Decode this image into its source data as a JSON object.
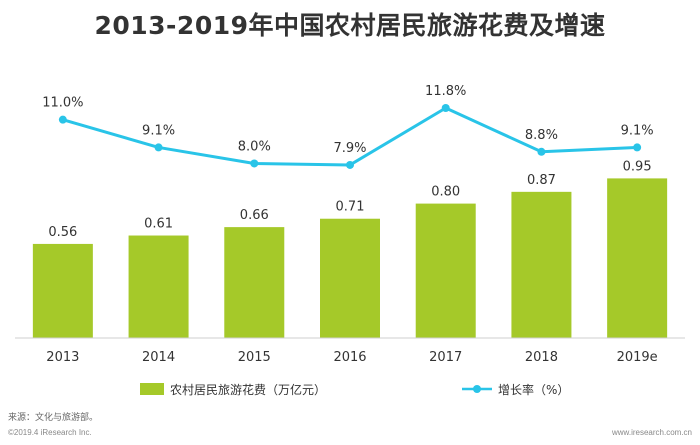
{
  "title": "2013-2019年中国农村居民旅游花费及增速",
  "chart_data": {
    "type": "bar",
    "categories": [
      "2013",
      "2014",
      "2015",
      "2016",
      "2017",
      "2018",
      "2019e"
    ],
    "series": [
      {
        "name": "农村居民旅游花费（万亿元）",
        "type": "bar",
        "color": "#a5c929",
        "values": [
          0.56,
          0.61,
          0.66,
          0.71,
          0.8,
          0.87,
          0.95
        ],
        "labels": [
          "0.56",
          "0.61",
          "0.66",
          "0.71",
          "0.80",
          "0.87",
          "0.95"
        ]
      },
      {
        "name": "增长率（%）",
        "type": "line",
        "color": "#29c4e8",
        "values": [
          11.0,
          9.1,
          8.0,
          7.9,
          11.8,
          8.8,
          9.1
        ],
        "labels": [
          "11.0%",
          "9.1%",
          "8.0%",
          "7.9%",
          "11.8%",
          "8.8%",
          "9.1%"
        ]
      }
    ],
    "legend_position": "bottom",
    "grid": false
  },
  "footer": {
    "source": "来源：文化与旅游部。",
    "copyright": "©2019.4 iResearch Inc.",
    "site": "www.iresearch.com.cn"
  }
}
